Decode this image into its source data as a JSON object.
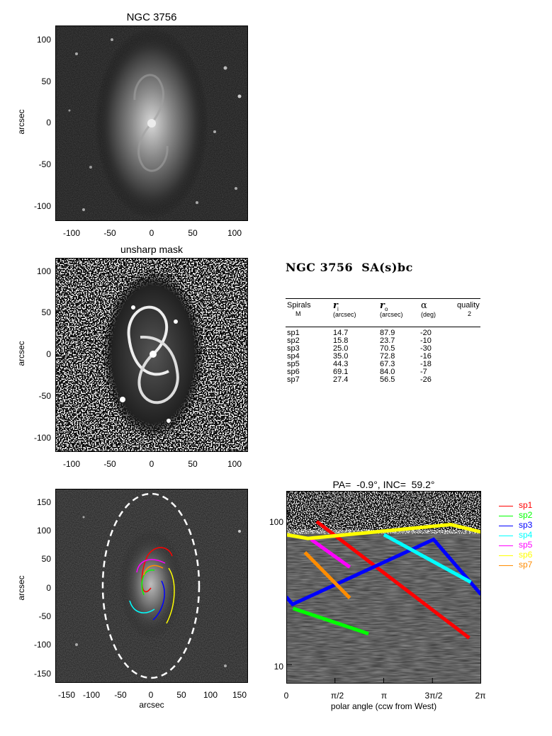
{
  "panel1": {
    "title": "NGC 3756",
    "ylabel": "arcsec",
    "xticks": [
      "-100",
      "-50",
      "0",
      "50",
      "100"
    ],
    "yticks": [
      "100",
      "50",
      "0",
      "-50",
      "-100"
    ]
  },
  "panel2": {
    "title": "unsharp mask",
    "ylabel": "arcsec",
    "xticks": [
      "-100",
      "-50",
      "0",
      "50",
      "100"
    ],
    "yticks": [
      "100",
      "50",
      "0",
      "-50",
      "-100"
    ]
  },
  "panel3": {
    "ylabel": "arcsec",
    "xlabel": "arcsec",
    "xticks": [
      "-150",
      "-100",
      "-50",
      "0",
      "50",
      "100",
      "150"
    ],
    "yticks": [
      "150",
      "100",
      "50",
      "0",
      "-50",
      "-100",
      "-150"
    ]
  },
  "info": {
    "heading": "NGC 3756  SA(s)bc",
    "headers": {
      "c1a": "Spirals",
      "c1b": "M",
      "c2a": "r",
      "c2sub": "i",
      "c2b": "(arcsec)",
      "c3a": "r",
      "c3sub": "o",
      "c3b": "(arcsec)",
      "c4a": "α",
      "c4b": "(deg)",
      "c5a": "quality",
      "c5b": "2"
    },
    "rows": [
      {
        "name": "sp1",
        "ri": "14.7",
        "ro": "87.9",
        "alpha": "-20"
      },
      {
        "name": "sp2",
        "ri": "15.8",
        "ro": "23.7",
        "alpha": "-10"
      },
      {
        "name": "sp3",
        "ri": "25.0",
        "ro": "70.5",
        "alpha": "-30"
      },
      {
        "name": "sp4",
        "ri": "35.0",
        "ro": "72.8",
        "alpha": "-16"
      },
      {
        "name": "sp5",
        "ri": "44.3",
        "ro": "67.3",
        "alpha": "-18"
      },
      {
        "name": "sp6",
        "ri": "69.1",
        "ro": "84.0",
        "alpha": "-7"
      },
      {
        "name": "sp7",
        "ri": "27.4",
        "ro": "56.5",
        "alpha": "-26"
      }
    ]
  },
  "chart_data": {
    "type": "line",
    "title": "PA=  -0.9°, INC=  59.2°",
    "xlabel": "polar angle (ccw from West)",
    "ylabel": "",
    "xticks": [
      "0",
      "π/2",
      "π",
      "3π/2",
      "2π"
    ],
    "yticks": [
      "100",
      "10"
    ],
    "xlim": [
      0,
      6.2832
    ],
    "ylim": [
      7.5,
      140
    ],
    "yscale": "log",
    "legend": "right",
    "series": [
      {
        "name": "sp1",
        "color": "#ff0000",
        "x": [
          0.98,
          5.9
        ],
        "y": [
          88,
          15
        ]
      },
      {
        "name": "sp2",
        "color": "#00ff00",
        "x": [
          0.22,
          2.65
        ],
        "y": [
          23.5,
          16
        ]
      },
      {
        "name": "sp3",
        "color": "#0000ff",
        "x": [
          0.0,
          0.2,
          4.75,
          6.28
        ],
        "y": [
          28,
          25,
          67,
          29
        ]
      },
      {
        "name": "sp4",
        "color": "#00ffff",
        "x": [
          3.15,
          5.95
        ],
        "y": [
          72,
          35
        ]
      },
      {
        "name": "sp5",
        "color": "#ff00ff",
        "x": [
          0.8,
          2.05
        ],
        "y": [
          67,
          44
        ]
      },
      {
        "name": "sp6",
        "color": "#ffff00",
        "x": [
          0.0,
          0.7,
          5.3,
          6.28
        ],
        "y": [
          72,
          68,
          84,
          75
        ]
      },
      {
        "name": "sp7",
        "color": "#ff8c00",
        "x": [
          0.6,
          2.05
        ],
        "y": [
          55,
          27.5
        ]
      }
    ]
  }
}
